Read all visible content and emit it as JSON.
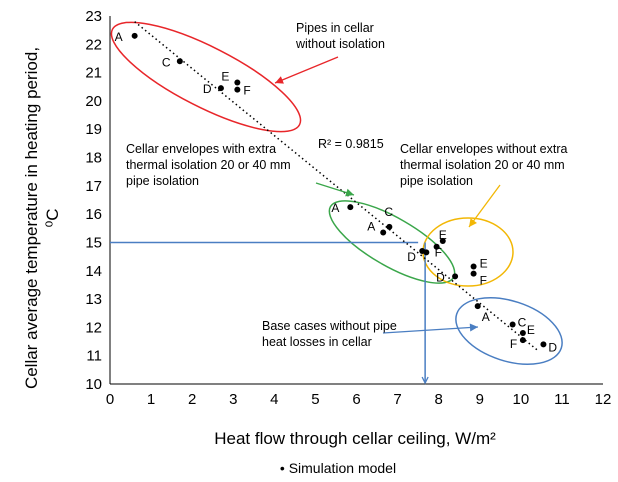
{
  "chart_data": {
    "type": "scatter",
    "title": "",
    "xlabel": "Heat flow through cellar ceiling, W/m²",
    "ylabel_line1": "Cellar average temperature in heating period,",
    "ylabel_line2": "⁰C",
    "xlim": [
      0,
      12
    ],
    "ylim": [
      10,
      23
    ],
    "xticks": [
      0,
      1,
      2,
      3,
      4,
      5,
      6,
      7,
      8,
      9,
      10,
      11,
      12
    ],
    "yticks": [
      10,
      11,
      12,
      13,
      14,
      15,
      16,
      17,
      18,
      19,
      20,
      21,
      22,
      23
    ],
    "grid": false,
    "series": [
      {
        "name": "Simulation model",
        "color": "#000000",
        "points": [
          {
            "x": 0.6,
            "y": 22.3,
            "label": "A"
          },
          {
            "x": 1.7,
            "y": 21.4,
            "label": "C"
          },
          {
            "x": 2.7,
            "y": 20.45,
            "label": "D"
          },
          {
            "x": 3.1,
            "y": 20.65,
            "label": "E"
          },
          {
            "x": 3.1,
            "y": 20.4,
            "label": "F"
          },
          {
            "x": 5.85,
            "y": 16.25,
            "label": "A"
          },
          {
            "x": 6.65,
            "y": 15.35,
            "label": "A"
          },
          {
            "x": 6.8,
            "y": 15.55,
            "label": "C"
          },
          {
            "x": 7.6,
            "y": 14.7,
            "label": "D"
          },
          {
            "x": 7.7,
            "y": 14.65,
            "label": ""
          },
          {
            "x": 8.1,
            "y": 15.05,
            "label": "E"
          },
          {
            "x": 7.95,
            "y": 14.85,
            "label": "F"
          },
          {
            "x": 8.4,
            "y": 13.8,
            "label": "D"
          },
          {
            "x": 8.85,
            "y": 14.15,
            "label": "E"
          },
          {
            "x": 8.85,
            "y": 13.9,
            "label": "F"
          },
          {
            "x": 8.95,
            "y": 12.75,
            "label": "A"
          },
          {
            "x": 9.8,
            "y": 12.1,
            "label": "C"
          },
          {
            "x": 10.05,
            "y": 11.8,
            "label": "E"
          },
          {
            "x": 10.05,
            "y": 11.55,
            "label": "F"
          },
          {
            "x": 10.55,
            "y": 11.4,
            "label": "D"
          }
        ]
      }
    ],
    "trendline": {
      "x1": 0.6,
      "y1": 22.8,
      "x2": 10.4,
      "y2": 11.2,
      "r2_label": "R² = 0.9815"
    },
    "groups": [
      {
        "text_lines": [
          "Pipes in cellar",
          "without isolation"
        ],
        "color": "#e8262a"
      },
      {
        "text_lines": [
          "Cellar envelopes with extra",
          "thermal isolation 20 or 40 mm",
          "pipe isolation"
        ],
        "color": "#3aa64a"
      },
      {
        "text_lines": [
          "Cellar envelopes without extra",
          "thermal isolation 20 or 40 mm",
          "pipe isolation"
        ],
        "color": "#f2b705"
      },
      {
        "text_lines": [
          "Base cases without pipe",
          "heat losses in cellar"
        ],
        "color": "#4a7ec2"
      }
    ],
    "reference_lines": {
      "y": 15,
      "x": 7.5,
      "color": "#4a7ec2"
    },
    "legend": {
      "position": "bottom-center",
      "text": "• Simulation model"
    }
  }
}
